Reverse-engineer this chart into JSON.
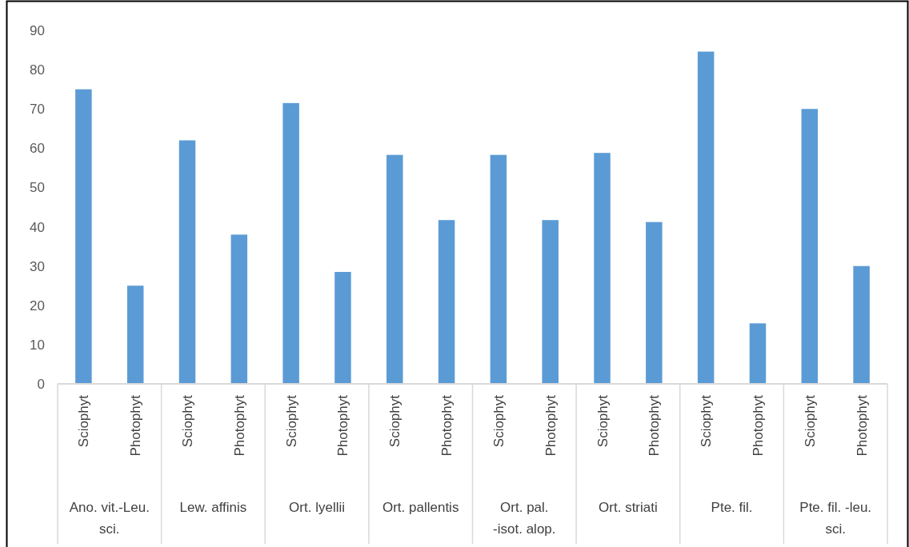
{
  "chart_data": {
    "type": "bar",
    "categories": [
      "Sciophyt",
      "Photophyt",
      "Sciophyt",
      "Photophyt",
      "Sciophyt",
      "Photophyt",
      "Sciophyt",
      "Photophyt",
      "Sciophyt",
      "Photophyt",
      "Sciophyt",
      "Photophyt",
      "Sciophyt",
      "Photophyt",
      "Sciophyt",
      "Photophyt"
    ],
    "values": [
      75,
      25,
      62,
      38,
      71.5,
      28.5,
      58.3,
      41.7,
      58.3,
      41.7,
      58.8,
      41.2,
      84.6,
      15.4,
      70,
      30
    ],
    "color": "#5b9bd5",
    "annotations": [
      "Ano. vit.-Leu. sci.",
      "Lew. affinis",
      "Ort. lyellii",
      "Ort. pallentis",
      "Ort. pal. -isot. alop.",
      "Ort. striati",
      "Pte. fil.",
      "Pte. fil. -leu. sci."
    ],
    "ylim": [
      0,
      90
    ],
    "yticks": [
      0,
      10,
      20,
      30,
      40,
      50,
      60,
      70,
      80,
      90
    ]
  }
}
